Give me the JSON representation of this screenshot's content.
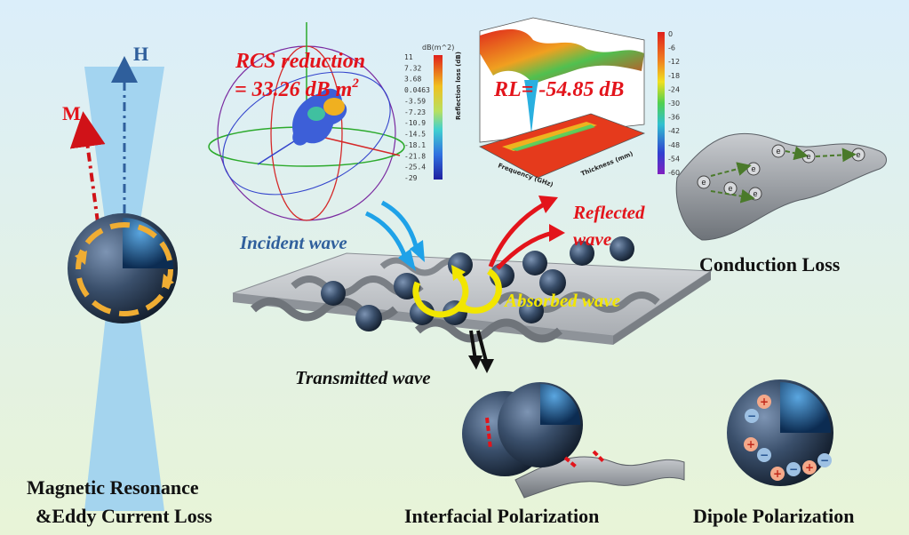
{
  "colors": {
    "background_top": "#dbeefa",
    "background_bottom": "#e8f4d7",
    "beam": "#9cd0ef",
    "red_text": "#e3141b",
    "blue_text": "#2f5f9c",
    "yellow_text": "#f2e600",
    "sphere_dark": "#1b2a3a",
    "sheet": "#8c9096"
  },
  "magnetic": {
    "h_label": "H",
    "m_label": "M",
    "caption_line1": "Magnetic Resonance",
    "caption_line2": "&Eddy Current Loss"
  },
  "rcs": {
    "title_line1": "RCS reduction",
    "title_line2": "= 33.26 dB m",
    "title_sup": "2",
    "colorbar_unit": "dB(m^2)",
    "colorbar_ticks": [
      "11",
      "7.32",
      "3.68",
      "0.0463",
      "-3.59",
      "-7.23",
      "-10.9",
      "-14.5",
      "-18.1",
      "-21.8",
      "-25.4",
      "-29"
    ]
  },
  "rl": {
    "value_text": "RL= -54.85 dB",
    "z_axis_label": "Reflection loss (dB)",
    "x_axis_label": "Frequency (GHz)",
    "y_axis_label": "Thickness (mm)",
    "colorbar_ticks": [
      "0",
      "-6",
      "-12",
      "-18",
      "-24",
      "-30",
      "-36",
      "-42",
      "-48",
      "-54",
      "-60"
    ]
  },
  "waves": {
    "incident": "Incident wave",
    "reflected_line1": "Reflected",
    "reflected_line2": "wave",
    "absorbed": "Absorbed wave",
    "transmitted": "Transmitted wave"
  },
  "conduction": {
    "caption": "Conduction Loss",
    "electron_symbol": "e"
  },
  "interfacial": {
    "caption": "Interfacial Polarization"
  },
  "dipole": {
    "caption": "Dipole Polarization",
    "plus": "+",
    "minus": "−"
  }
}
